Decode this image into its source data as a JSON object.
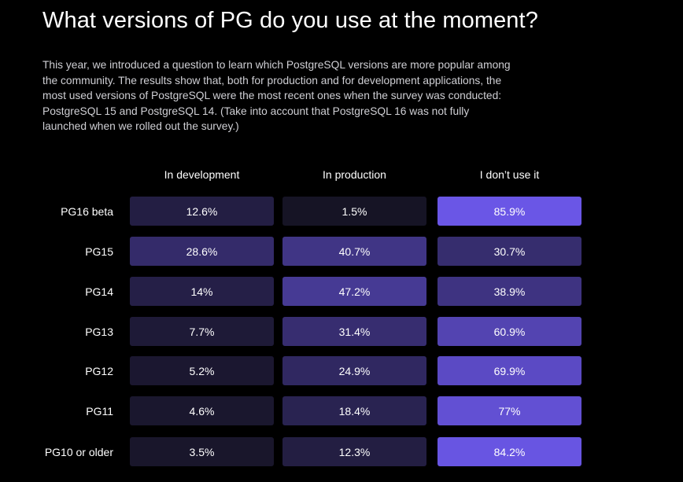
{
  "title": "What versions of PG do you use at the moment?",
  "intro": "This year, we introduced a question to learn which PostgreSQL versions are more popular among the community. The results show that, both for production and for development applications, the most used versions of PostgreSQL were the most recent ones when the survey was conducted: PostgreSQL 15 and PostgreSQL 14. (Take into account that PostgreSQL 16 was not fully launched when we rolled out the survey.)",
  "colors": {
    "background": "#000000",
    "cell_low": "#141220",
    "cell_high": "#6a56e6"
  },
  "chart_data": {
    "type": "heatmap",
    "columns": [
      "In development",
      "In production",
      "I don’t use it"
    ],
    "rows": [
      "PG16 beta",
      "PG15",
      "PG14",
      "PG13",
      "PG12",
      "PG11",
      "PG10 or older"
    ],
    "values": [
      [
        12.6,
        1.5,
        85.9
      ],
      [
        28.6,
        40.7,
        30.7
      ],
      [
        14,
        47.2,
        38.9
      ],
      [
        7.7,
        31.4,
        60.9
      ],
      [
        5.2,
        24.9,
        69.9
      ],
      [
        4.6,
        18.4,
        77
      ],
      [
        3.5,
        12.3,
        84.2
      ]
    ],
    "labels": [
      [
        "12.6%",
        "1.5%",
        "85.9%"
      ],
      [
        "28.6%",
        "40.7%",
        "30.7%"
      ],
      [
        "14%",
        "47.2%",
        "38.9%"
      ],
      [
        "7.7%",
        "31.4%",
        "60.9%"
      ],
      [
        "5.2%",
        "24.9%",
        "69.9%"
      ],
      [
        "4.6%",
        "18.4%",
        "77%"
      ],
      [
        "3.5%",
        "12.3%",
        "84.2%"
      ]
    ],
    "unit": "%"
  }
}
